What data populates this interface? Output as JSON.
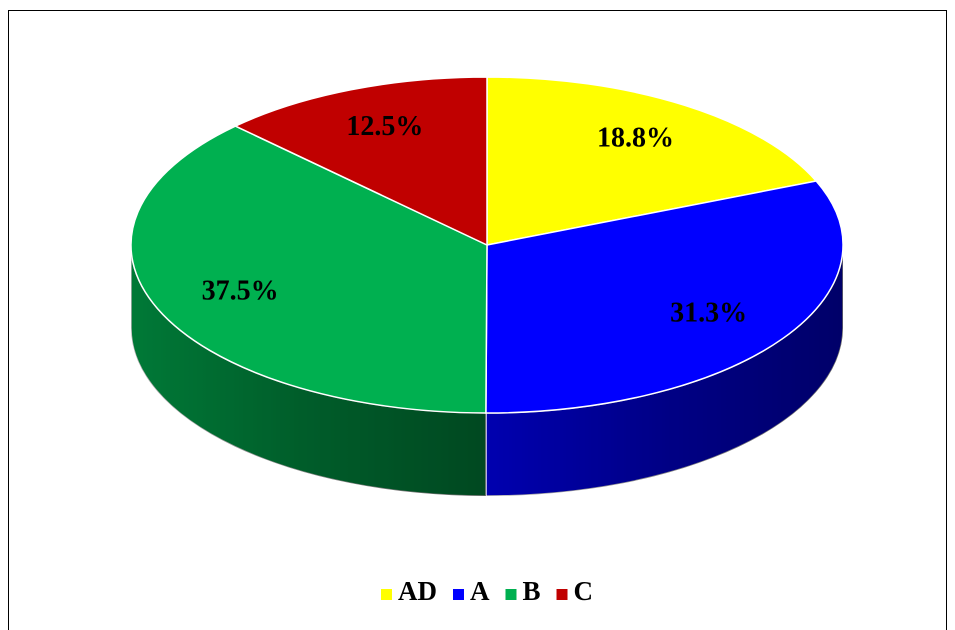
{
  "chart_data": {
    "type": "pie",
    "categories": [
      "AD",
      "A",
      "B",
      "C"
    ],
    "values": [
      18.8,
      31.3,
      37.5,
      12.5
    ],
    "value_labels": [
      "18.8%",
      "31.3%",
      "37.5%",
      "12.5%"
    ],
    "colors": [
      "#ffff00",
      "#0000ff",
      "#00b050",
      "#c00000"
    ],
    "legend": "bottom"
  }
}
